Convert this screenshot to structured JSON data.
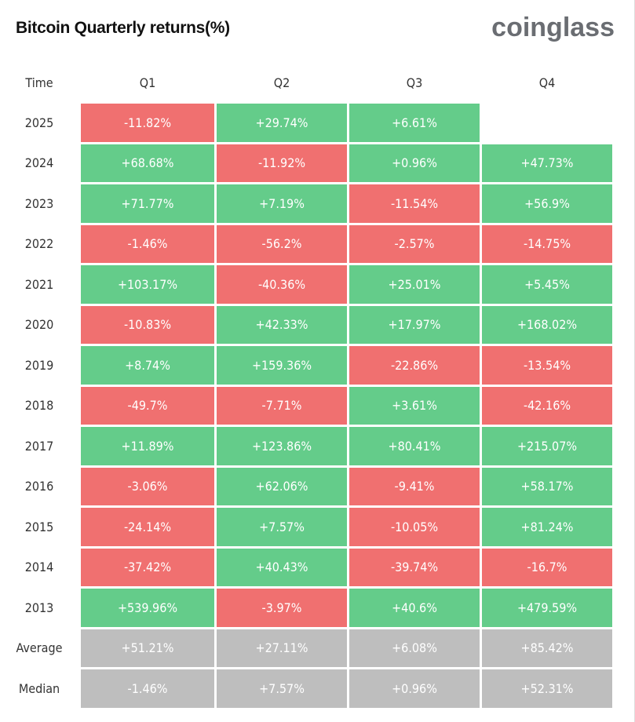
{
  "header": {
    "title": "Bitcoin Quarterly returns(%)",
    "logo": "coinglass"
  },
  "colors": {
    "positive": "#64CC8A",
    "negative": "#F07070",
    "summary": "#BEBEBE"
  },
  "chart_data": {
    "type": "table",
    "title": "Bitcoin Quarterly returns(%)",
    "columns": [
      "Time",
      "Q1",
      "Q2",
      "Q3",
      "Q4"
    ],
    "rows": [
      {
        "label": "2025",
        "values": [
          "-11.82%",
          "+29.74%",
          "+6.61%",
          ""
        ]
      },
      {
        "label": "2024",
        "values": [
          "+68.68%",
          "-11.92%",
          "+0.96%",
          "+47.73%"
        ]
      },
      {
        "label": "2023",
        "values": [
          "+71.77%",
          "+7.19%",
          "-11.54%",
          "+56.9%"
        ]
      },
      {
        "label": "2022",
        "values": [
          "-1.46%",
          "-56.2%",
          "-2.57%",
          "-14.75%"
        ]
      },
      {
        "label": "2021",
        "values": [
          "+103.17%",
          "-40.36%",
          "+25.01%",
          "+5.45%"
        ]
      },
      {
        "label": "2020",
        "values": [
          "-10.83%",
          "+42.33%",
          "+17.97%",
          "+168.02%"
        ]
      },
      {
        "label": "2019",
        "values": [
          "+8.74%",
          "+159.36%",
          "-22.86%",
          "-13.54%"
        ]
      },
      {
        "label": "2018",
        "values": [
          "-49.7%",
          "-7.71%",
          "+3.61%",
          "-42.16%"
        ]
      },
      {
        "label": "2017",
        "values": [
          "+11.89%",
          "+123.86%",
          "+80.41%",
          "+215.07%"
        ]
      },
      {
        "label": "2016",
        "values": [
          "-3.06%",
          "+62.06%",
          "-9.41%",
          "+58.17%"
        ]
      },
      {
        "label": "2015",
        "values": [
          "-24.14%",
          "+7.57%",
          "-10.05%",
          "+81.24%"
        ]
      },
      {
        "label": "2014",
        "values": [
          "-37.42%",
          "+40.43%",
          "-39.74%",
          "-16.7%"
        ]
      },
      {
        "label": "2013",
        "values": [
          "+539.96%",
          "-3.97%",
          "+40.6%",
          "+479.59%"
        ]
      }
    ],
    "summary": [
      {
        "label": "Average",
        "values": [
          "+51.21%",
          "+27.11%",
          "+6.08%",
          "+85.42%"
        ]
      },
      {
        "label": "Median",
        "values": [
          "-1.46%",
          "+7.57%",
          "+0.96%",
          "+52.31%"
        ]
      }
    ]
  }
}
